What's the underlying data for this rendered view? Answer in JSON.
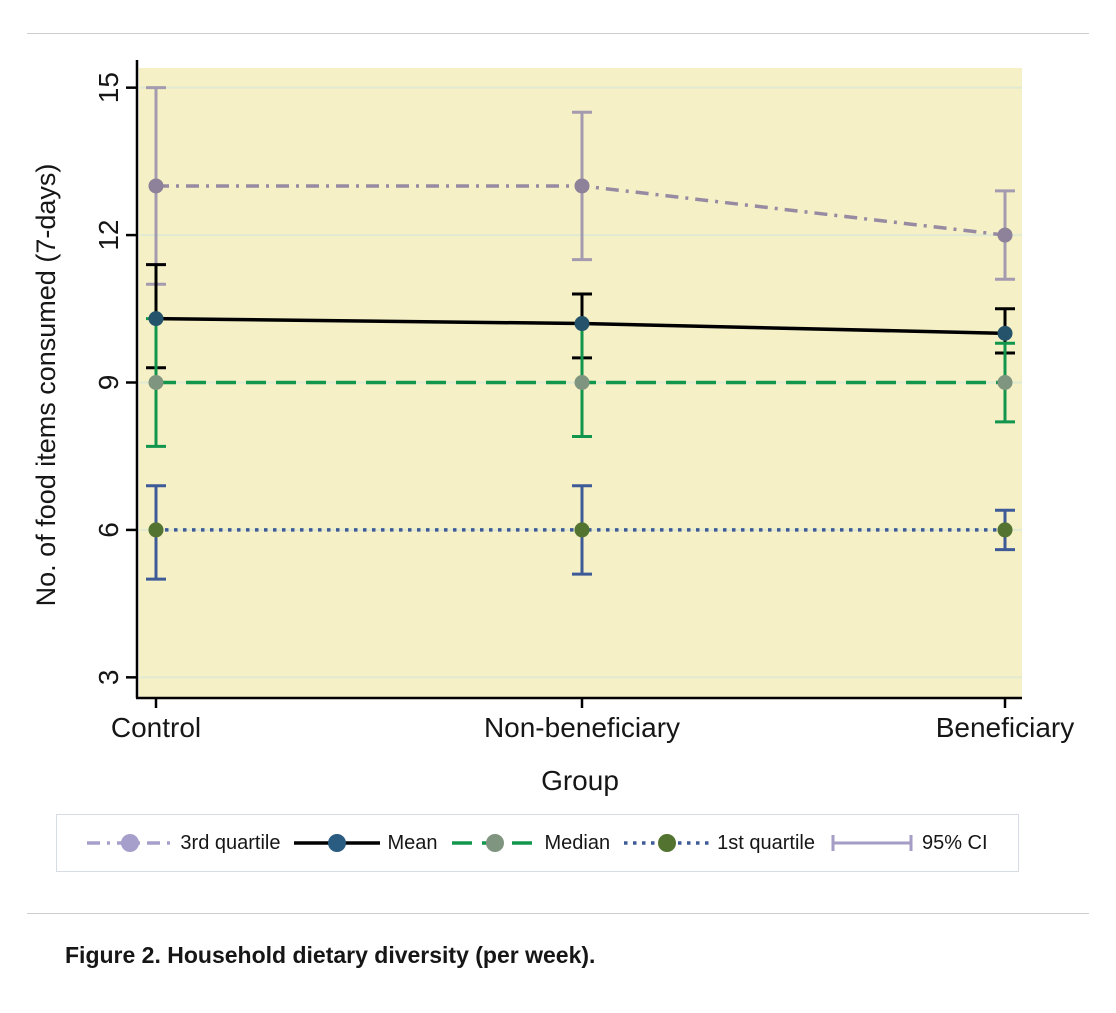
{
  "page": {
    "background": "#ffffff"
  },
  "caption": {
    "text": "Figure 2. Household dietary diversity (per week)."
  },
  "chart_data": {
    "type": "line",
    "title": "",
    "xlabel": "Group",
    "ylabel": "No. of food items consumed (7-days)",
    "categories": [
      "Control",
      "Non-beneficiary",
      "Beneficiary"
    ],
    "yticks": [
      15,
      12,
      9,
      6,
      3
    ],
    "ylim": [
      2.6,
      15.4
    ],
    "grid": true,
    "legend_position": "bottom",
    "plot_bg": "#f5f0c5",
    "grid_color": "#e0ead2",
    "axis_color": "#000000",
    "series": [
      {
        "name": "3rd quartile",
        "values": [
          13,
          13,
          12
        ],
        "ci_low": [
          11.0,
          11.5,
          11.1
        ],
        "ci_high": [
          15.0,
          14.5,
          12.9
        ],
        "style": "dashdot",
        "line_color": "#968ba2",
        "marker_color": "#8d8299",
        "ci_color": "#a49bb0",
        "legend_line_color": "#a79fcb",
        "legend_marker_color": "#a79fcb"
      },
      {
        "name": "Mean",
        "values": [
          10.3,
          10.2,
          10.0
        ],
        "ci_low": [
          9.3,
          9.5,
          9.6
        ],
        "ci_high": [
          11.4,
          10.8,
          10.5
        ],
        "style": "solid",
        "line_color": "#000000",
        "marker_color": "#24536b",
        "ci_color": "#000000",
        "legend_marker_color": "#2a5b80"
      },
      {
        "name": "Median",
        "values": [
          9,
          9,
          9
        ],
        "ci_low": [
          7.7,
          7.9,
          8.2
        ],
        "ci_high": [
          10.3,
          10.2,
          9.8
        ],
        "style": "dashed",
        "line_color": "#12954c",
        "marker_color": "#7f957f",
        "ci_color": "#12954c"
      },
      {
        "name": "1st quartile",
        "values": [
          6,
          6,
          6
        ],
        "ci_low": [
          5.0,
          5.1,
          5.6
        ],
        "ci_high": [
          6.9,
          6.9,
          6.4
        ],
        "style": "dotted",
        "line_color": "#3e5b98",
        "marker_color": "#537430",
        "ci_color": "#3e5b98"
      }
    ],
    "ci_legend": {
      "label": "95% CI",
      "color": "#a59dc6"
    }
  }
}
